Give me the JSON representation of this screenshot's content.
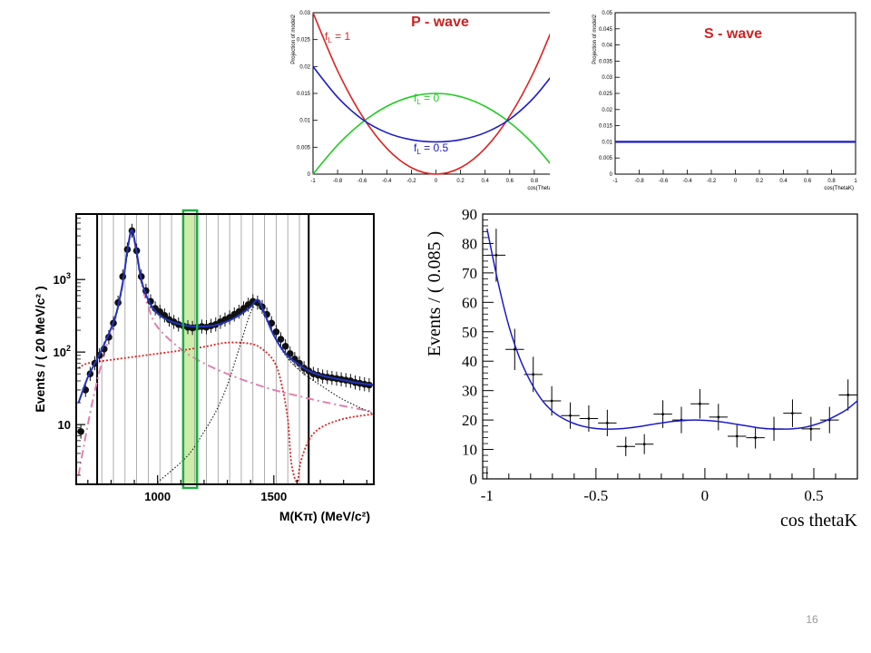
{
  "page_number": "16",
  "chart_data": [
    {
      "id": "p_wave",
      "type": "line",
      "title": "P - wave",
      "xlabel": "cos(ThetaK)",
      "ylabel": "Projection of model2",
      "xlim": [
        -1,
        1
      ],
      "ylim": [
        0,
        0.03
      ],
      "xticks": [
        "-1",
        "-0.8",
        "-0.6",
        "-0.4",
        "-0.2",
        "0",
        "0.2",
        "0.4",
        "0.6",
        "0.8",
        "1"
      ],
      "yticks": [
        "0",
        "0.005",
        "0.01",
        "0.015",
        "0.02",
        "0.025",
        "0.03"
      ],
      "grid": false,
      "colors": {
        "title": "#cc2222",
        "fl1": "#dd2222",
        "fl0": "#22cc22",
        "fl05": "#1a1acc"
      },
      "series": [
        {
          "name": "f_L = 1",
          "label_main": "f",
          "label_sub": "L",
          "label_rest": " = 1",
          "color": "#dd2222",
          "x": [
            -1,
            -0.8,
            -0.6,
            -0.4,
            -0.2,
            0,
            0.2,
            0.4,
            0.6,
            0.8,
            1
          ],
          "y": [
            0.03,
            0.0192,
            0.0108,
            0.0048,
            0.0012,
            0,
            0.0012,
            0.0048,
            0.0108,
            0.0192,
            0.03
          ]
        },
        {
          "name": "f_L = 0",
          "label_main": "f",
          "label_sub": "L",
          "label_rest": " = 0",
          "color": "#22cc22",
          "x": [
            -1,
            -0.8,
            -0.6,
            -0.4,
            -0.2,
            0,
            0.2,
            0.4,
            0.6,
            0.8,
            1
          ],
          "y": [
            0,
            0.0054,
            0.0096,
            0.0126,
            0.0144,
            0.015,
            0.0144,
            0.0126,
            0.0096,
            0.0054,
            0
          ]
        },
        {
          "name": "f_L = 0.5",
          "label_main": "f",
          "label_sub": "L",
          "label_rest": " = 0.5",
          "color": "#1a1acc",
          "x": [
            -1,
            -0.8,
            -0.6,
            -0.4,
            -0.2,
            0,
            0.2,
            0.4,
            0.6,
            0.8,
            1
          ],
          "y": [
            0.02,
            0.0143,
            0.0102,
            0.0077,
            0.0064,
            0.006,
            0.0064,
            0.0077,
            0.0102,
            0.0143,
            0.02
          ]
        }
      ]
    },
    {
      "id": "s_wave",
      "type": "line",
      "title": "S - wave",
      "xlabel": "cos(ThetaK)",
      "ylabel": "Projection of model2",
      "xlim": [
        -1,
        1
      ],
      "ylim": [
        0,
        0.05
      ],
      "xticks": [
        "-1",
        "-0.8",
        "-0.6",
        "-0.4",
        "-0.2",
        "0",
        "0.2",
        "0.4",
        "0.6",
        "0.8",
        "1"
      ],
      "yticks": [
        "0",
        "0.005",
        "0.01",
        "0.015",
        "0.02",
        "0.025",
        "0.03",
        "0.035",
        "0.04",
        "0.045",
        "0.05"
      ],
      "grid": false,
      "colors": {
        "title": "#cc2222",
        "line": "#1a1acc"
      },
      "series": [
        {
          "name": "",
          "x": [
            -1,
            1
          ],
          "y": [
            0.01,
            0.01
          ],
          "color": "#1a1acc"
        }
      ]
    },
    {
      "id": "mass_spectrum",
      "type": "scatter",
      "title": "",
      "xlabel": "M(Kπ)  (MeV/c²)",
      "ylabel": "Events / ( 20 MeV/c² )",
      "xlim": [
        650,
        1930
      ],
      "ylim": [
        1.5,
        8000
      ],
      "log_y": true,
      "xticks": [
        1000,
        1500
      ],
      "yticks_label": [
        {
          "base": "10",
          "exp": ""
        },
        {
          "base": "10",
          "exp": "2"
        },
        {
          "base": "10",
          "exp": "3"
        }
      ],
      "yticks_val": [
        10,
        100,
        1000
      ],
      "grid": "vertical bin lines",
      "highlight_band": [
        1110,
        1170
      ],
      "bold_lines": [
        740,
        1650
      ],
      "colors": {
        "points": "#111111",
        "fit": "#2233bb",
        "dashdot": "#e080b0",
        "red_dotted": "#dd2222",
        "black_dotted": "#222222",
        "band": "#ccecaa",
        "band_edge": "#22aa44"
      },
      "points": {
        "x": [
          670,
          690,
          710,
          730,
          750,
          770,
          790,
          810,
          830,
          850,
          870,
          890,
          910,
          930,
          950,
          970,
          990,
          1010,
          1030,
          1050,
          1070,
          1090,
          1110,
          1130,
          1150,
          1170,
          1190,
          1210,
          1230,
          1250,
          1270,
          1290,
          1310,
          1330,
          1350,
          1370,
          1390,
          1410,
          1430,
          1450,
          1470,
          1490,
          1510,
          1530,
          1550,
          1570,
          1590,
          1610,
          1630,
          1650,
          1670,
          1690,
          1710,
          1730,
          1750,
          1770,
          1790,
          1810,
          1830,
          1850,
          1870,
          1890,
          1910
        ],
        "y": [
          8,
          30,
          50,
          70,
          90,
          110,
          160,
          250,
          480,
          1100,
          2600,
          4700,
          2500,
          1100,
          700,
          500,
          400,
          360,
          320,
          280,
          260,
          240,
          230,
          220,
          215,
          220,
          225,
          220,
          230,
          240,
          260,
          280,
          300,
          330,
          360,
          400,
          450,
          500,
          480,
          420,
          330,
          250,
          190,
          150,
          120,
          95,
          80,
          70,
          60,
          55,
          50,
          48,
          46,
          45,
          44,
          43,
          42,
          41,
          40,
          38,
          37,
          36,
          35
        ]
      },
      "fit": {
        "x": [
          660,
          700,
          740,
          780,
          820,
          850,
          870,
          885,
          895,
          910,
          930,
          960,
          1000,
          1050,
          1100,
          1150,
          1200,
          1250,
          1300,
          1350,
          1400,
          1425,
          1440,
          1460,
          1500,
          1550,
          1600,
          1650,
          1700,
          1750,
          1800,
          1850,
          1900,
          1930
        ],
        "y": [
          20,
          45,
          80,
          150,
          320,
          900,
          2500,
          4600,
          4300,
          2400,
          1000,
          520,
          340,
          270,
          240,
          225,
          225,
          235,
          265,
          320,
          420,
          520,
          480,
          340,
          170,
          95,
          70,
          55,
          48,
          44,
          41,
          38,
          36,
          35
        ]
      },
      "dashdot": {
        "x": [
          660,
          700,
          740,
          780,
          820,
          850,
          870,
          885,
          895,
          910,
          930,
          960,
          1000,
          1100,
          1200,
          1300,
          1400,
          1500,
          1600,
          1700,
          1800,
          1930
        ],
        "y": [
          2,
          10,
          40,
          120,
          300,
          850,
          2400,
          4400,
          4100,
          2200,
          900,
          420,
          220,
          110,
          70,
          50,
          38,
          30,
          25,
          21,
          18,
          15
        ]
      },
      "red_dotted": {
        "x": [
          660,
          700,
          800,
          900,
          1000,
          1100,
          1200,
          1300,
          1400,
          1450,
          1500,
          1530,
          1560,
          1575,
          1600,
          1615,
          1650,
          1700,
          1800,
          1930
        ],
        "y": [
          60,
          70,
          78,
          86,
          95,
          105,
          118,
          135,
          130,
          110,
          75,
          40,
          12,
          3,
          1.6,
          3,
          6,
          9,
          12,
          14
        ]
      },
      "black_dotted": {
        "x": [
          1000,
          1100,
          1150,
          1200,
          1250,
          1300,
          1350,
          1400,
          1430,
          1450,
          1500,
          1550,
          1600,
          1650,
          1700,
          1800,
          1930
        ],
        "y": [
          1.6,
          3,
          4.5,
          8,
          15,
          35,
          110,
          350,
          480,
          420,
          170,
          90,
          60,
          45,
          35,
          22,
          14
        ]
      }
    },
    {
      "id": "angular",
      "type": "scatter",
      "title": "",
      "xlabel": "cos thetaK",
      "ylabel": "Events / ( 0.085 )",
      "xlim": [
        -1.02,
        0.7
      ],
      "ylim": [
        0,
        90
      ],
      "xticks": [
        -1,
        -0.5,
        0,
        0.5
      ],
      "xtick_labels": [
        "-1",
        "-0.5",
        "0",
        "0.5"
      ],
      "yticks": [
        0,
        10,
        20,
        30,
        40,
        50,
        60,
        70,
        80,
        90
      ],
      "grid": false,
      "colors": {
        "points": "#000000",
        "fit": "#1a1acc"
      },
      "points": {
        "x": [
          -0.958,
          -0.873,
          -0.788,
          -0.703,
          -0.618,
          -0.533,
          -0.448,
          -0.363,
          -0.278,
          -0.193,
          -0.108,
          -0.023,
          0.062,
          0.147,
          0.232,
          0.317,
          0.402,
          0.487,
          0.572,
          0.657
        ],
        "y": [
          76,
          44,
          35.5,
          26.5,
          21.5,
          20.5,
          19,
          11,
          11.8,
          22,
          20,
          25.5,
          21,
          14.5,
          14,
          17,
          22.3,
          17,
          20,
          28.5
        ],
        "err": [
          9,
          7,
          6,
          5,
          4.5,
          4.5,
          4.5,
          3.3,
          3.4,
          4.7,
          4.5,
          5,
          4.5,
          3.8,
          3.7,
          4.1,
          4.7,
          4.1,
          4.5,
          5.3
        ]
      },
      "fit": {
        "x": [
          -1,
          -0.95,
          -0.9,
          -0.85,
          -0.8,
          -0.75,
          -0.7,
          -0.65,
          -0.6,
          -0.55,
          -0.5,
          -0.45,
          -0.4,
          -0.35,
          -0.3,
          -0.25,
          -0.2,
          -0.15,
          -0.1,
          -0.05,
          0,
          0.05,
          0.1,
          0.15,
          0.2,
          0.25,
          0.3,
          0.35,
          0.4,
          0.45,
          0.5,
          0.55,
          0.6,
          0.65,
          0.7
        ],
        "y": [
          85,
          67,
          52,
          41,
          33,
          27,
          23,
          20.5,
          18.8,
          17.7,
          17.1,
          16.9,
          17,
          17.3,
          17.8,
          18.4,
          19,
          19.5,
          19.8,
          20,
          19.9,
          19.6,
          19.1,
          18.5,
          17.9,
          17.3,
          17,
          16.9,
          17,
          17.4,
          18.3,
          19.6,
          21.4,
          23.5,
          26.5
        ]
      }
    }
  ]
}
